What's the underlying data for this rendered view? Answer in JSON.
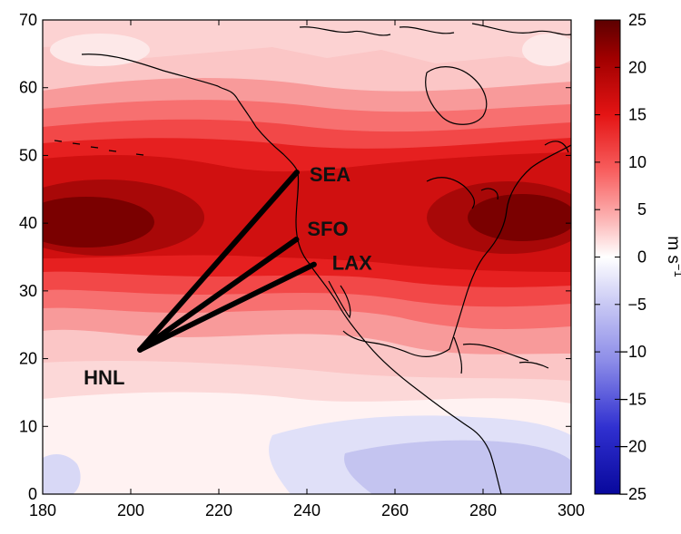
{
  "chart_data": {
    "type": "heatmap",
    "title": "",
    "xlabel": "",
    "ylabel": "",
    "xlim": [
      180,
      300
    ],
    "ylim": [
      0,
      70
    ],
    "xticks": [
      "180",
      "200",
      "220",
      "240",
      "260",
      "280",
      "300"
    ],
    "yticks": [
      "0",
      "10",
      "20",
      "30",
      "40",
      "50",
      "60",
      "70"
    ],
    "colorbar": {
      "label": "m s",
      "label_superscript": "−1",
      "range": [
        -25,
        25
      ],
      "ticks": [
        "25",
        "20",
        "15",
        "10",
        "5",
        "0",
        "−5",
        "−10",
        "−15",
        "−20",
        "−25"
      ],
      "colors": {
        "low": "#08089c",
        "mid": "#ffffff",
        "high": "#5c0000"
      }
    },
    "field_maxima": [
      {
        "lon": 187,
        "lat": 40,
        "value": 23
      },
      {
        "lon": 290,
        "lat": 41,
        "value": 24
      }
    ],
    "field_minima": [
      {
        "lon": 270,
        "lat": 6,
        "value": -8
      }
    ],
    "cities": [
      {
        "code": "HNL",
        "lon": 202.1,
        "lat": 21.3
      },
      {
        "code": "SEA",
        "lon": 237.7,
        "lat": 47.5
      },
      {
        "code": "SFO",
        "lon": 237.6,
        "lat": 37.6
      },
      {
        "code": "LAX",
        "lon": 241.6,
        "lat": 33.9
      }
    ],
    "routes": [
      [
        "HNL",
        "SEA"
      ],
      [
        "HNL",
        "SFO"
      ],
      [
        "HNL",
        "LAX"
      ]
    ],
    "grid": false,
    "legend": "colorbar-right"
  }
}
